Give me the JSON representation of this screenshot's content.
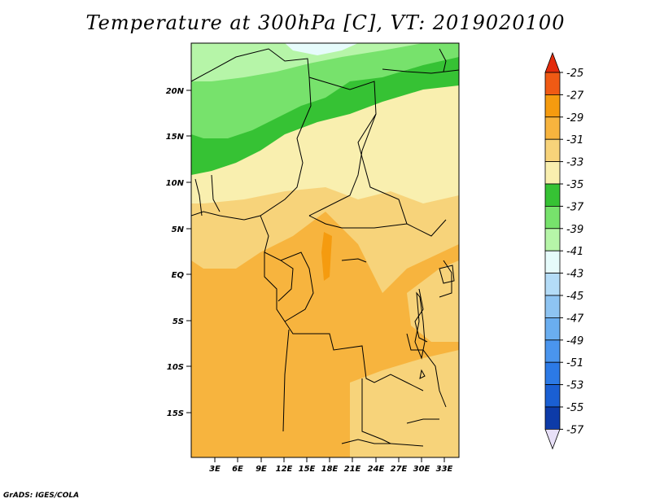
{
  "title": "Temperature at 300hPa [C], VT: 2019020100",
  "credit": "GrADS: IGES/COLA",
  "map": {
    "lat_labels": [
      "20N",
      "15N",
      "10N",
      "5N",
      "EQ",
      "5S",
      "10S",
      "15S"
    ],
    "lon_labels": [
      "3E",
      "6E",
      "9E",
      "12E",
      "15E",
      "18E",
      "21E",
      "24E",
      "27E",
      "30E",
      "33E"
    ]
  },
  "colorbar": {
    "labels": [
      "-25",
      "-27",
      "-29",
      "-31",
      "-33",
      "-35",
      "-37",
      "-39",
      "-41",
      "-43",
      "-45",
      "-47",
      "-49",
      "-51",
      "-53",
      "-55",
      "-57"
    ],
    "colors": [
      "#f05a14",
      "#f59b0f",
      "#f7b43e",
      "#f7d37a",
      "#f9efaf",
      "#36c234",
      "#77e26c",
      "#b6f5a8",
      "#e6fbfb",
      "#b4dcf7",
      "#8ec4f2",
      "#6aaef0",
      "#4a95ee",
      "#2c7ae6",
      "#1a5fd3",
      "#0d3ba8",
      "#080f6b"
    ],
    "top_color": "#e32b0c",
    "bottom_color": "#e8e0f8"
  },
  "colors": {
    "warm_orange": "#f7b43e",
    "light_yellow": "#f9efaf",
    "pale_yellow": "#f7d37a",
    "green": "#36c234",
    "light_green": "#77e26c"
  }
}
